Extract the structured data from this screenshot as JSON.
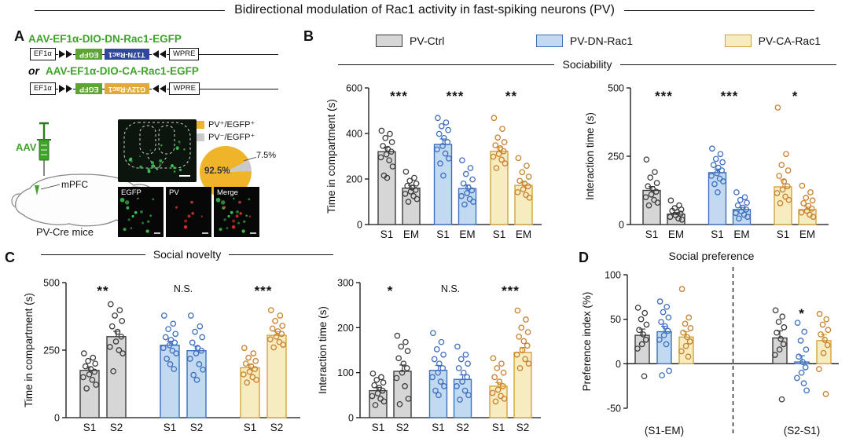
{
  "title": "Bidirectional modulation of Rac1 activity in fast-spiking neurons (PV)",
  "panel_labels": {
    "a": "A",
    "b": "B",
    "c": "C",
    "d": "D"
  },
  "sections": {
    "sociability": "Sociability",
    "social_novelty": "Social novelty",
    "social_preference": "Social preference"
  },
  "colors": {
    "series": {
      "ctrl": {
        "fill": "#d6d6d6",
        "stroke": "#3d3d3d",
        "point": "#3d3d3d"
      },
      "dn": {
        "fill": "#c2d9f2",
        "stroke": "#3f6fbf",
        "point": "#3f6fbf"
      },
      "ca": {
        "fill": "#f7ecc0",
        "stroke": "#d3a43c",
        "point": "#c9802f"
      }
    },
    "accent_green": "#3fa32a",
    "egfp_box": "#5da433",
    "dn_box": "#31479c",
    "ca_box": "#dfaa38",
    "pie_yellow": "#f0b42a",
    "pie_gray": "#c9c9c9",
    "micro_green": "#3ec24f",
    "micro_red": "#e03a2b"
  },
  "legend": {
    "items": [
      {
        "key": "ctrl",
        "label": "PV-Ctrl"
      },
      {
        "key": "dn",
        "label": "PV-DN-Rac1"
      },
      {
        "key": "ca",
        "label": "PV-CA-Rac1"
      }
    ]
  },
  "panelA": {
    "constructs": [
      {
        "name": "AAV-EF1α-DIO-DN-Rac1-EGFP",
        "parts": [
          {
            "kind": "box",
            "text": "EF1α"
          },
          {
            "kind": "lox",
            "dir": "r"
          },
          {
            "kind": "gene",
            "text": "EGFP",
            "color": "egfp",
            "flip": true
          },
          {
            "kind": "gene",
            "text": "T17N-Rac1",
            "color": "dn",
            "flip": true
          },
          {
            "kind": "lox",
            "dir": "l"
          },
          {
            "kind": "box",
            "text": "WPRE"
          }
        ]
      },
      {
        "name": "AAV-EF1α-DIO-CA-Rac1-EGFP",
        "parts": [
          {
            "kind": "box",
            "text": "EF1α"
          },
          {
            "kind": "lox",
            "dir": "r"
          },
          {
            "kind": "gene",
            "text": "EGFP",
            "color": "egfp",
            "flip": true
          },
          {
            "kind": "gene",
            "text": "G12V-Rac1",
            "color": "ca",
            "flip": true
          },
          {
            "kind": "lox",
            "dir": "l"
          },
          {
            "kind": "box",
            "text": "WPRE"
          }
        ]
      }
    ],
    "or_label": "or",
    "aav_label": "AAV",
    "region_label": "mPFC",
    "mouse_label": "PV-Cre mice",
    "pie": {
      "legend": [
        {
          "label": "PV⁺/EGFP⁺",
          "color": "pie_yellow"
        },
        {
          "label": "PV⁻/EGFP⁺",
          "color": "pie_gray"
        }
      ],
      "slices": [
        {
          "label": "92.5%",
          "value": 92.5
        },
        {
          "label": "7.5%",
          "value": 7.5
        }
      ]
    },
    "micro_labels": [
      "EGFP",
      "PV",
      "Merge"
    ]
  },
  "chart_data": [
    {
      "id": "soc-time",
      "type": "bar",
      "section": "Sociability",
      "ylabel": "Time in compartment (s)",
      "ylim": [
        0,
        600
      ],
      "yticks": [
        0,
        200,
        400,
        600
      ],
      "groups": [
        {
          "series": "ctrl",
          "sig": "***",
          "bars": [
            {
              "label": "S1",
              "mean": 320,
              "sem": 20,
              "points": [
                412,
                398,
                380,
                362,
                345,
                332,
                320,
                308,
                295,
                282,
                255,
                215,
                205
              ]
            },
            {
              "label": "EM",
              "mean": 160,
              "sem": 12,
              "points": [
                232,
                205,
                192,
                180,
                170,
                162,
                152,
                145,
                135,
                125,
                112,
                100
              ]
            }
          ]
        },
        {
          "series": "dn",
          "sig": "***",
          "bars": [
            {
              "label": "S1",
              "mean": 352,
              "sem": 24,
              "points": [
                468,
                448,
                432,
                415,
                398,
                380,
                362,
                345,
                330,
                312,
                290,
                268,
                215
              ]
            },
            {
              "label": "EM",
              "mean": 158,
              "sem": 16,
              "points": [
                282,
                248,
                222,
                198,
                180,
                162,
                150,
                138,
                125,
                112,
                100,
                88
              ]
            }
          ]
        },
        {
          "series": "ca",
          "sig": "**",
          "bars": [
            {
              "label": "S1",
              "mean": 322,
              "sem": 18,
              "points": [
                468,
                420,
                382,
                362,
                348,
                335,
                322,
                310,
                298,
                285,
                268,
                248
              ]
            },
            {
              "label": "EM",
              "mean": 172,
              "sem": 15,
              "points": [
                292,
                258,
                230,
                210,
                192,
                180,
                168,
                155,
                142,
                130,
                118
              ]
            }
          ]
        }
      ]
    },
    {
      "id": "soc-inter",
      "type": "bar",
      "section": "Sociability",
      "ylabel": "Interaction time (s)",
      "ylim": [
        0,
        500
      ],
      "yticks": [
        0,
        250,
        500
      ],
      "groups": [
        {
          "series": "ctrl",
          "sig": "***",
          "bars": [
            {
              "label": "S1",
              "mean": 125,
              "sem": 14,
              "points": [
                238,
                192,
                172,
                152,
                140,
                130,
                120,
                110,
                100,
                90,
                80,
                70
              ]
            },
            {
              "label": "EM",
              "mean": 38,
              "sem": 6,
              "points": [
                88,
                70,
                60,
                55,
                50,
                45,
                40,
                34,
                28,
                22,
                18
              ]
            }
          ]
        },
        {
          "series": "dn",
          "sig": "***",
          "bars": [
            {
              "label": "S1",
              "mean": 190,
              "sem": 13,
              "points": [
                278,
                258,
                240,
                228,
                218,
                208,
                198,
                188,
                178,
                168,
                158,
                148,
                118
              ]
            },
            {
              "label": "EM",
              "mean": 55,
              "sem": 8,
              "points": [
                118,
                100,
                90,
                80,
                70,
                62,
                55,
                48,
                42,
                36,
                28,
                22
              ]
            }
          ]
        },
        {
          "series": "ca",
          "sig": "*",
          "bars": [
            {
              "label": "S1",
              "mean": 138,
              "sem": 26,
              "points": [
                428,
                258,
                218,
                198,
                178,
                158,
                140,
                128,
                115,
                102,
                90,
                78
              ]
            },
            {
              "label": "EM",
              "mean": 55,
              "sem": 9,
              "points": [
                142,
                118,
                98,
                88,
                78,
                68,
                58,
                50,
                44,
                36,
                28
              ]
            }
          ]
        }
      ]
    },
    {
      "id": "nov-time",
      "type": "bar",
      "section": "Social novelty",
      "ylabel": "Time in compartment (s)",
      "ylim": [
        0,
        500
      ],
      "yticks": [
        0,
        250,
        500
      ],
      "groups": [
        {
          "series": "ctrl",
          "sig": "**",
          "bars": [
            {
              "label": "S1",
              "mean": 175,
              "sem": 13,
              "points": [
                238,
                222,
                210,
                200,
                190,
                180,
                170,
                160,
                150,
                140,
                122,
                108
              ]
            },
            {
              "label": "S2",
              "mean": 300,
              "sem": 20,
              "points": [
                420,
                398,
                378,
                358,
                338,
                318,
                300,
                282,
                262,
                250,
                238,
                172
              ]
            }
          ]
        },
        {
          "series": "dn",
          "sig": "N.S.",
          "bars": [
            {
              "label": "S1",
              "mean": 268,
              "sem": 15,
              "points": [
                378,
                348,
                328,
                310,
                298,
                288,
                278,
                268,
                258,
                248,
                238,
                218,
                198,
                180
              ]
            },
            {
              "label": "S2",
              "mean": 248,
              "sem": 17,
              "points": [
                378,
                338,
                318,
                298,
                278,
                258,
                248,
                238,
                218,
                198,
                178,
                158,
                140
              ]
            }
          ]
        },
        {
          "series": "ca",
          "sig": "***",
          "bars": [
            {
              "label": "S1",
              "mean": 185,
              "sem": 12,
              "points": [
                258,
                238,
                222,
                210,
                200,
                190,
                180,
                170,
                160,
                150,
                140,
                130
              ]
            },
            {
              "label": "S2",
              "mean": 305,
              "sem": 13,
              "points": [
                398,
                378,
                358,
                340,
                330,
                320,
                310,
                300,
                290,
                280,
                270,
                260
              ]
            }
          ]
        }
      ]
    },
    {
      "id": "nov-inter",
      "type": "bar",
      "section": "Social novelty",
      "ylabel": "Interaction time (s)",
      "ylim": [
        0,
        300
      ],
      "yticks": [
        0,
        100,
        200,
        300
      ],
      "groups": [
        {
          "series": "ctrl",
          "sig": "*",
          "bars": [
            {
              "label": "S1",
              "mean": 60,
              "sem": 7,
              "points": [
                98,
                90,
                84,
                78,
                72,
                66,
                60,
                54,
                48,
                42,
                36,
                28
              ]
            },
            {
              "label": "S2",
              "mean": 103,
              "sem": 14,
              "points": [
                182,
                168,
                158,
                148,
                132,
                120,
                110,
                100,
                88,
                70,
                42,
                30
              ]
            }
          ]
        },
        {
          "series": "dn",
          "sig": "N.S.",
          "bars": [
            {
              "label": "S1",
              "mean": 105,
              "sem": 11,
              "points": [
                188,
                168,
                152,
                140,
                130,
                120,
                110,
                100,
                90,
                80,
                70,
                60,
                50
              ]
            },
            {
              "label": "S2",
              "mean": 85,
              "sem": 10,
              "points": [
                158,
                140,
                130,
                120,
                110,
                100,
                90,
                80,
                70,
                60,
                50,
                40
              ]
            }
          ]
        },
        {
          "series": "ca",
          "sig": "***",
          "bars": [
            {
              "label": "S1",
              "mean": 70,
              "sem": 8,
              "points": [
                132,
                120,
                110,
                100,
                90,
                80,
                70,
                62,
                55,
                48,
                42,
                36
              ]
            },
            {
              "label": "S2",
              "mean": 145,
              "sem": 11,
              "points": [
                238,
                218,
                200,
                190,
                180,
                170,
                160,
                150,
                140,
                130,
                120,
                110
              ]
            }
          ]
        }
      ]
    },
    {
      "id": "pref",
      "type": "bar",
      "section": "Social preference",
      "ylabel": "Preference index (%)",
      "ylim": [
        -50,
        100
      ],
      "yticks": [
        -50,
        0,
        50,
        100
      ],
      "divider": true,
      "groups": [
        {
          "label": "(S1-EM)",
          "bars": [
            {
              "series": "ctrl",
              "mean": 32,
              "sem": 7,
              "points": [
                63,
                57,
                50,
                44,
                38,
                33,
                27,
                22,
                17,
                -14
              ]
            },
            {
              "series": "dn",
              "mean": 36,
              "sem": 6,
              "points": [
                70,
                64,
                58,
                52,
                47,
                42,
                37,
                32,
                27,
                22,
                -8,
                -13
              ]
            },
            {
              "series": "ca",
              "mean": 30,
              "sem": 6,
              "points": [
                84,
                52,
                45,
                40,
                35,
                30,
                25,
                20,
                14,
                8
              ]
            }
          ]
        },
        {
          "label": "(S2-S1)",
          "bars": [
            {
              "series": "ctrl",
              "mean": 29,
              "sem": 8,
              "points": [
                60,
                53,
                47,
                41,
                35,
                28,
                22,
                16,
                10,
                -40
              ]
            },
            {
              "series": "dn",
              "mean": 2,
              "sem": 7,
              "sig": "*",
              "points": [
                46,
                36,
                26,
                16,
                8,
                2,
                -4,
                -10,
                -16,
                -22,
                -30
              ]
            },
            {
              "series": "ca",
              "mean": 26,
              "sem": 7,
              "points": [
                56,
                50,
                44,
                38,
                33,
                27,
                21,
                12,
                -6,
                -34
              ]
            }
          ]
        }
      ]
    }
  ]
}
